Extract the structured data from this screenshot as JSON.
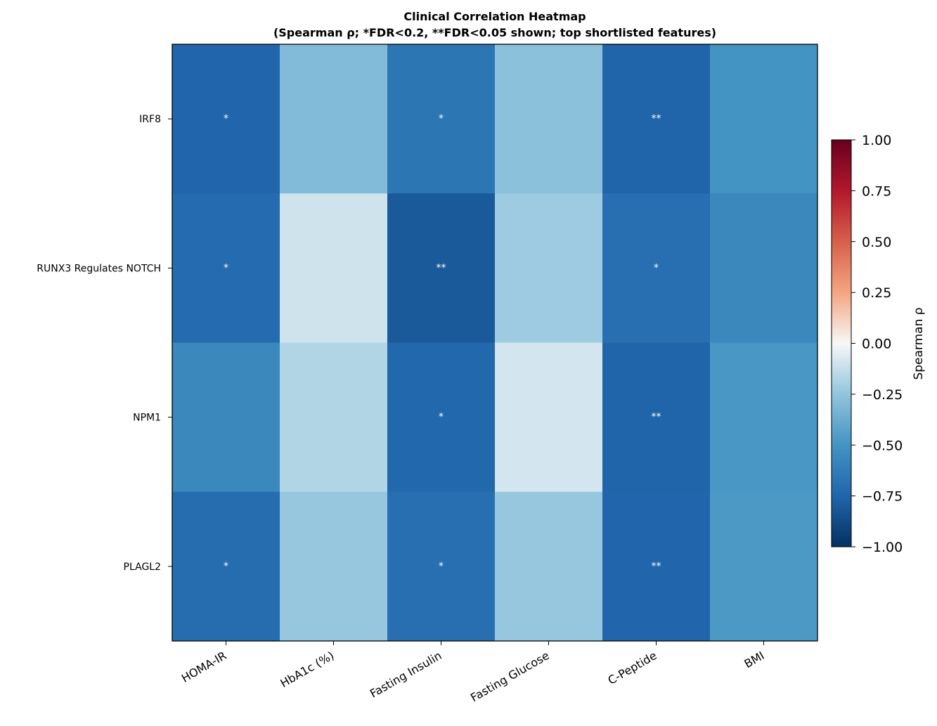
{
  "chart_data": {
    "type": "heatmap",
    "title_line1": "Clinical Correlation Heatmap",
    "title_line2": "(Spearman ρ; *FDR<0.2, **FDR<0.05 shown; top shortlisted features)",
    "columns": [
      "HOMA-IR",
      "HbA1c (%)",
      "Fasting Insulin",
      "Fasting Glucose",
      "C-Peptide",
      "BMI"
    ],
    "rows": [
      "IRF8",
      "RUNX3 Regulates NOTCH",
      "NPM1",
      "PLAGL2"
    ],
    "values": [
      [
        -0.75,
        -0.3,
        -0.66,
        -0.27,
        -0.76,
        -0.5
      ],
      [
        -0.72,
        -0.1,
        -0.81,
        -0.22,
        -0.7,
        -0.56
      ],
      [
        -0.56,
        -0.17,
        -0.74,
        -0.09,
        -0.76,
        -0.48
      ],
      [
        -0.71,
        -0.24,
        -0.7,
        -0.24,
        -0.75,
        -0.47
      ]
    ],
    "annotations": [
      [
        "*",
        "",
        "*",
        "",
        "**",
        ""
      ],
      [
        "*",
        "",
        "**",
        "",
        "*",
        ""
      ],
      [
        "",
        "",
        "*",
        "",
        "**",
        ""
      ],
      [
        "*",
        "",
        "*",
        "",
        "**",
        ""
      ]
    ],
    "colorbar": {
      "label": "Spearman ρ",
      "range": [
        -1.0,
        1.0
      ],
      "ticks": [
        "1.00",
        "0.75",
        "0.50",
        "0.25",
        "0.00",
        "−0.25",
        "−0.50",
        "−0.75",
        "−1.00"
      ],
      "tick_values": [
        1.0,
        0.75,
        0.5,
        0.25,
        0.0,
        -0.25,
        -0.5,
        -0.75,
        -1.0
      ],
      "colormap": "RdBu_r"
    }
  }
}
